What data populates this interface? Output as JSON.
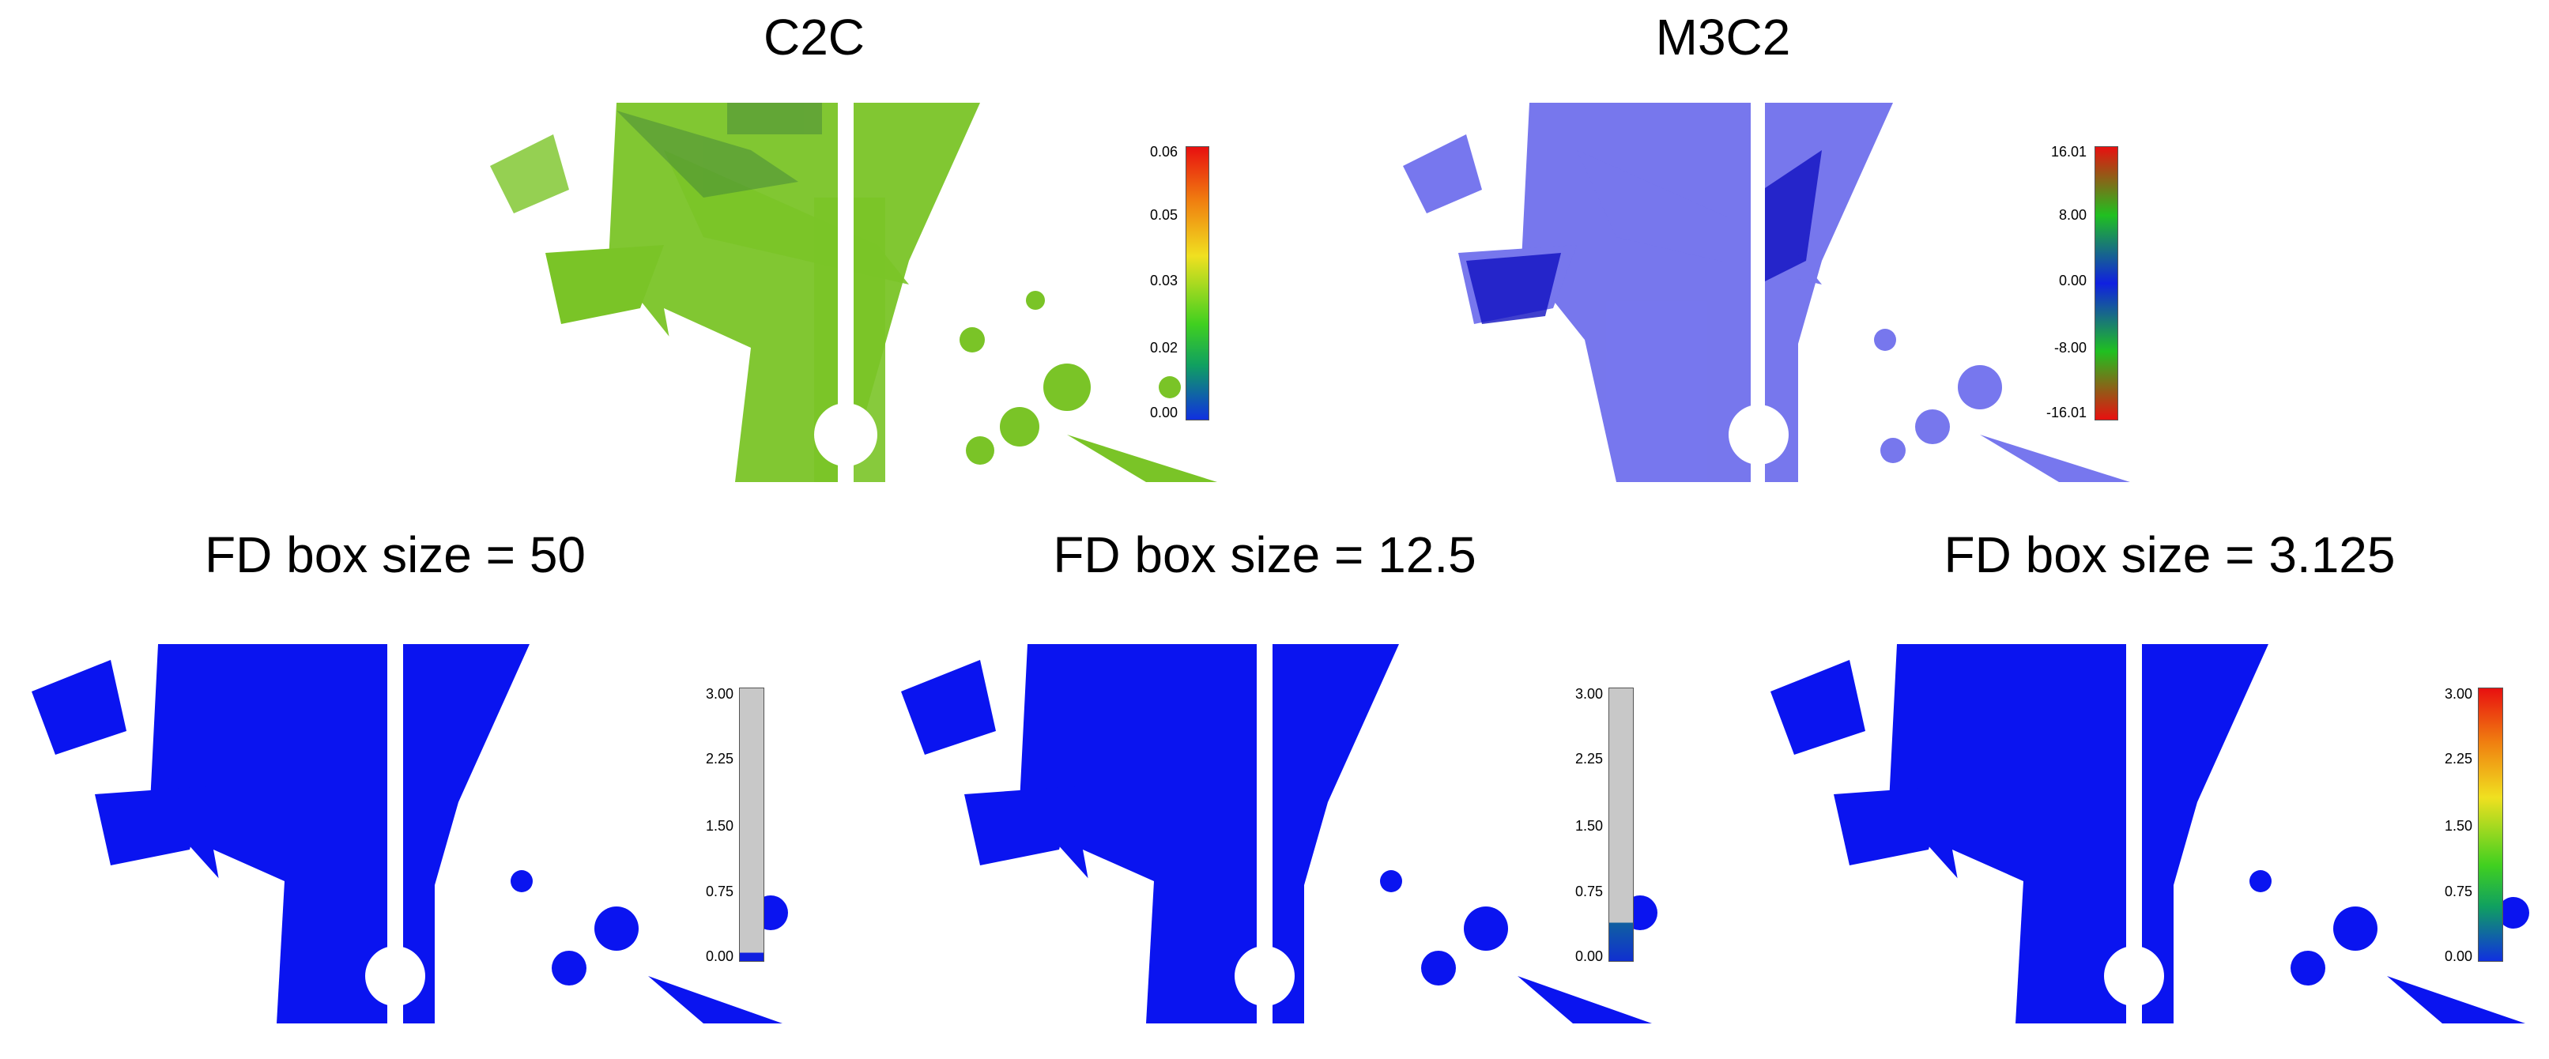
{
  "figure": {
    "top_left_title": "C2C",
    "top_right_title": "M3C2",
    "bottom_titles": [
      "FD box size = 50",
      "FD box size = 12.5",
      "FD box size = 3.125"
    ]
  },
  "colorbars": {
    "c2c": {
      "ticks": [
        "0.06",
        "0.05",
        "0.03",
        "0.02",
        "0.00"
      ],
      "scheme": "blue-green-yellow-red"
    },
    "m3c2": {
      "ticks": [
        "16.01",
        "8.00",
        "0.00",
        "-8.00",
        "-16.01"
      ],
      "scheme": "red-green-blue-green-red"
    },
    "fd50": {
      "ticks": [
        "3.00",
        "2.25",
        "1.50",
        "0.75",
        "0.00"
      ],
      "scheme": "grey-mostly"
    },
    "fd12": {
      "ticks": [
        "3.00",
        "2.25",
        "1.50",
        "0.75",
        "0.00"
      ],
      "scheme": "grey-with-blue-bottom"
    },
    "fd3": {
      "ticks": [
        "3.00",
        "2.25",
        "1.50",
        "0.75",
        "0.00"
      ],
      "scheme": "blue-green-yellow-red"
    }
  },
  "colors": {
    "green_points": "#7ac427",
    "light_blue_points": "#4a4ae8",
    "blue_points": "#0a14f0",
    "grey_bar": "#c8c8c8"
  }
}
